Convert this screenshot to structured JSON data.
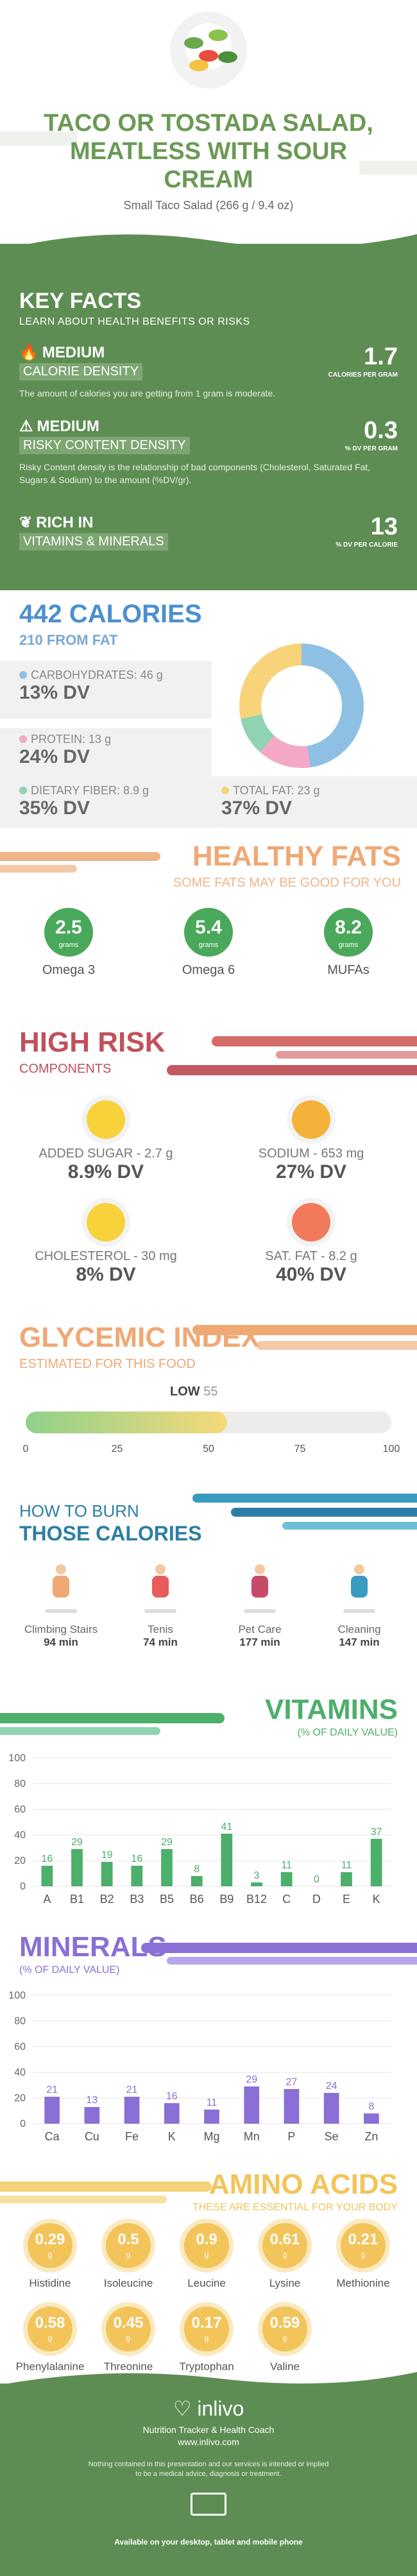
{
  "header": {
    "title_line1": "TACO OR TOSTADA SALAD,",
    "title_line2": "MEATLESS WITH SOUR",
    "title_line3": "CREAM",
    "serving": "Small Taco Salad (266 g / 9.4 oz)"
  },
  "key_facts": {
    "title": "KEY FACTS",
    "subtitle": "LEARN ABOUT HEALTH BENEFITS OR RISKS",
    "items": [
      {
        "level": "MEDIUM",
        "label": "CALORIE DENSITY",
        "value": "1.7",
        "unit": "CALORIES PER GRAM",
        "desc": "The amount of calories you are getting from 1 gram is moderate.",
        "icon": "fire-icon"
      },
      {
        "level": "MEDIUM",
        "label": "RISKY CONTENT DENSITY",
        "value": "0.3",
        "unit": "% DV PER GRAM",
        "desc": "Risky Content density is the relationship of bad components (Cholesterol, Saturated Fat, Sugars & Sodium) to the amount (%DV/gr).",
        "icon": "warning-icon"
      },
      {
        "level": "RICH  IN",
        "label": "VITAMINS & MINERALS",
        "value": "13",
        "unit": "% DV PER CALORIE",
        "desc": "",
        "icon": "leaf-icon"
      }
    ]
  },
  "calories": {
    "title": "442 CALORIES",
    "from_fat": "210 FROM FAT",
    "macros": [
      {
        "name": "CARBOHYDRATES: 46 g",
        "dv": "13% DV",
        "color": "#8ec0e4"
      },
      {
        "name": "PROTEIN: 13 g",
        "dv": "24% DV",
        "color": "#f4a8c6"
      },
      {
        "name": "DIETARY FIBER: 8.9 g",
        "dv": "35% DV",
        "color": "#8fd3b0"
      },
      {
        "name": "TOTAL FAT: 23 g",
        "dv": "37% DV",
        "color": "#f7d37a"
      }
    ]
  },
  "healthy_fats": {
    "title": "HEALTHY FATS",
    "subtitle": "SOME FATS MAY BE GOOD FOR YOU",
    "unit": "grams",
    "items": [
      {
        "value": "2.5",
        "name": "Omega 3"
      },
      {
        "value": "5.4",
        "name": "Omega 6"
      },
      {
        "value": "8.2",
        "name": "MUFAs"
      }
    ]
  },
  "high_risk": {
    "title": "HIGH RISK",
    "subtitle": "COMPONENTS",
    "items": [
      {
        "name": "ADDED SUGAR - 2.7 g",
        "dv": "8.9% DV",
        "face": "happy-face-icon",
        "color": "#f7d23a"
      },
      {
        "name": "SODIUM - 653 mg",
        "dv": "27% DV",
        "face": "happy-face-icon",
        "color": "#f4b23a"
      },
      {
        "name": "CHOLESTEROL - 30 mg",
        "dv": "8% DV",
        "face": "happy-face-icon",
        "color": "#f7d23a"
      },
      {
        "name": "SAT. FAT - 8.2 g",
        "dv": "40% DV",
        "face": "sad-face-icon",
        "color": "#f07a5a"
      }
    ]
  },
  "glycemic": {
    "title": "GLYCEMIC INDEX",
    "subtitle": "ESTIMATED FOR THIS FOOD",
    "level": "LOW",
    "value": "55",
    "value_num": 55,
    "ticks": [
      "0",
      "25",
      "50",
      "75",
      "100"
    ]
  },
  "burn": {
    "title1": "HOW TO BURN",
    "title2": "THOSE CALORIES",
    "items": [
      {
        "name": "Climbing Stairs",
        "time": "94 min"
      },
      {
        "name": "Tenis",
        "time": "74 min"
      },
      {
        "name": "Pet Care",
        "time": "177 min"
      },
      {
        "name": "Cleaning",
        "time": "147 min"
      }
    ]
  },
  "vitamins": {
    "title": "VITAMINS",
    "subtitle": "(% OF DAILY VALUE)",
    "chart_data": {
      "type": "bar",
      "categories": [
        "A",
        "B1",
        "B2",
        "B3",
        "B5",
        "B6",
        "B9",
        "B12",
        "C",
        "D",
        "E",
        "K"
      ],
      "values": [
        16,
        29,
        19,
        16,
        29,
        8,
        41,
        3,
        11,
        0,
        11,
        37
      ],
      "ylim": [
        0,
        100
      ],
      "yticks": [
        "0",
        "20",
        "40",
        "60",
        "80",
        "100"
      ],
      "color": "#4caf6a"
    }
  },
  "minerals": {
    "title": "MINERALS",
    "subtitle": "(% OF DAILY VALUE)",
    "chart_data": {
      "type": "bar",
      "categories": [
        "Ca",
        "Cu",
        "Fe",
        "K",
        "Mg",
        "Mn",
        "P",
        "Se",
        "Zn"
      ],
      "values": [
        21,
        13,
        21,
        16,
        11,
        29,
        27,
        24,
        8
      ],
      "ylim": [
        0,
        100
      ],
      "yticks": [
        "0",
        "20",
        "40",
        "60",
        "80",
        "100"
      ],
      "color": "#8a6fd6"
    }
  },
  "amino": {
    "title": "AMINO ACIDS",
    "subtitle": "THESE ARE ESSENTIAL FOR YOUR BODY",
    "unit": "g",
    "items": [
      {
        "value": "0.29",
        "name": "Histidine"
      },
      {
        "value": "0.5",
        "name": "Isoleucine"
      },
      {
        "value": "0.9",
        "name": "Leucine"
      },
      {
        "value": "0.61",
        "name": "Lysine"
      },
      {
        "value": "0.21",
        "name": "Methionine"
      },
      {
        "value": "0.58",
        "name": "Phenylalanine"
      },
      {
        "value": "0.45",
        "name": "Threonine"
      },
      {
        "value": "0.17",
        "name": "Tryptophan"
      },
      {
        "value": "0.59",
        "name": "Valine"
      }
    ]
  },
  "footer": {
    "brand": "inlivo",
    "tagline": "Nutrition Tracker & Health Coach",
    "url": "www.inlivo.com",
    "disclaimer1": "Nothing contained in this presentation and our services is intended or implied",
    "disclaimer2": "to be a medical advice, diagnosis or treatment.",
    "available": "Available on your desktop, tablet and mobile phone"
  }
}
